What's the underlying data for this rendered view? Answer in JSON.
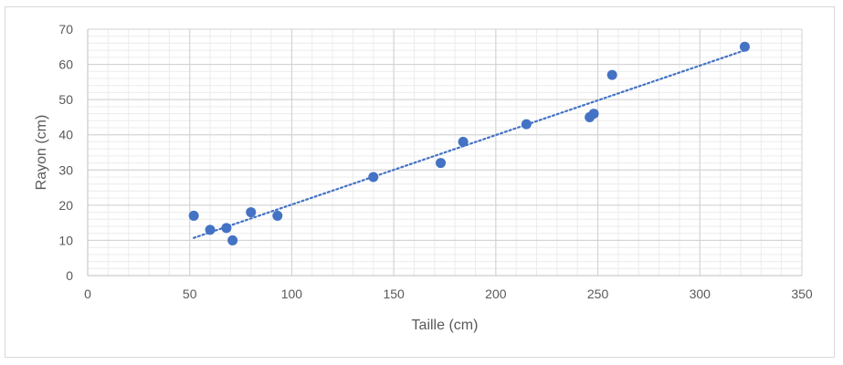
{
  "chart_data": {
    "type": "scatter",
    "title": "",
    "xlabel": "Taille (cm)",
    "ylabel": "Rayon (cm)",
    "xlim": [
      0,
      350
    ],
    "ylim": [
      0,
      70
    ],
    "x_major_step": 50,
    "y_major_step": 10,
    "x_ticks": [
      "0",
      "50",
      "100",
      "150",
      "200",
      "250",
      "300",
      "350"
    ],
    "y_ticks": [
      "0",
      "10",
      "20",
      "30",
      "40",
      "50",
      "60",
      "70"
    ],
    "grid": "major and minor",
    "legend": "none",
    "series": [
      {
        "color": "#4472c4",
        "points": [
          {
            "x": 52,
            "y": 17
          },
          {
            "x": 60,
            "y": 13
          },
          {
            "x": 68,
            "y": 13.5
          },
          {
            "x": 71,
            "y": 10
          },
          {
            "x": 80,
            "y": 18
          },
          {
            "x": 93,
            "y": 17
          },
          {
            "x": 140,
            "y": 28
          },
          {
            "x": 173,
            "y": 32
          },
          {
            "x": 184,
            "y": 38
          },
          {
            "x": 215,
            "y": 43
          },
          {
            "x": 246,
            "y": 45
          },
          {
            "x": 248,
            "y": 46
          },
          {
            "x": 257,
            "y": 57
          },
          {
            "x": 322,
            "y": 65
          }
        ]
      }
    ],
    "trendline": {
      "type": "linear",
      "style": "dotted",
      "color": "#4472c4",
      "x_start": 52,
      "y_start": 10.7,
      "x_end": 322,
      "y_end": 64
    }
  }
}
